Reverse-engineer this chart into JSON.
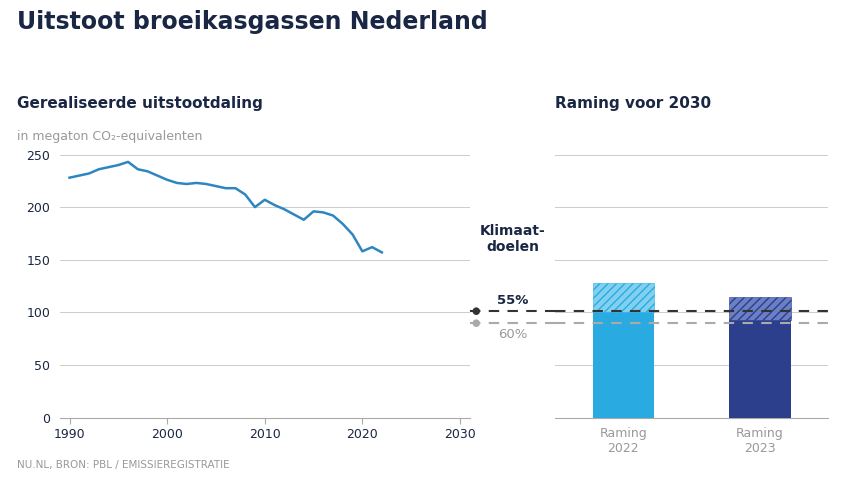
{
  "title": "Uitstoot broeikasgassen Nederland",
  "subtitle_left": "Gerealiseerde uitstootdaling",
  "subtitle_right": "Raming voor 2030",
  "unit_label": "in megaton CO₂-equivalenten",
  "source": "NU.NL, BRON: PBL / EMISSIEREGISTRATIE",
  "line_years": [
    1990,
    1991,
    1992,
    1993,
    1994,
    1995,
    1996,
    1997,
    1998,
    1999,
    2000,
    2001,
    2002,
    2003,
    2004,
    2005,
    2006,
    2007,
    2008,
    2009,
    2010,
    2011,
    2012,
    2013,
    2014,
    2015,
    2016,
    2017,
    2018,
    2019,
    2020,
    2021,
    2022
  ],
  "line_values": [
    228,
    230,
    232,
    236,
    238,
    240,
    243,
    236,
    234,
    230,
    226,
    223,
    222,
    223,
    222,
    220,
    218,
    218,
    212,
    200,
    207,
    202,
    198,
    193,
    188,
    196,
    195,
    192,
    184,
    174,
    158,
    162,
    157
  ],
  "line_color": "#2E86C1",
  "bar_solid_2022": 100,
  "bar_hatch_2022": 28,
  "bar_solid_2023": 93,
  "bar_hatch_2023": 22,
  "bar_color_2022": "#29ABE2",
  "bar_color_2023": "#2B3F8C",
  "bar_hatch_color_2022": "#82D0F0",
  "bar_hatch_color_2023": "#6B7FC4",
  "line_55pct": 101,
  "line_60pct": 90,
  "klim_label": "Klimaat-\ndoelen",
  "pct55_label": "55%",
  "pct60_label": "60%",
  "ylim": [
    0,
    260
  ],
  "yticks": [
    0,
    50,
    100,
    150,
    200,
    250
  ],
  "background_color": "#FFFFFF",
  "grid_color": "#CCCCCC",
  "text_color_dark": "#1a2744",
  "text_color_gray": "#999999"
}
